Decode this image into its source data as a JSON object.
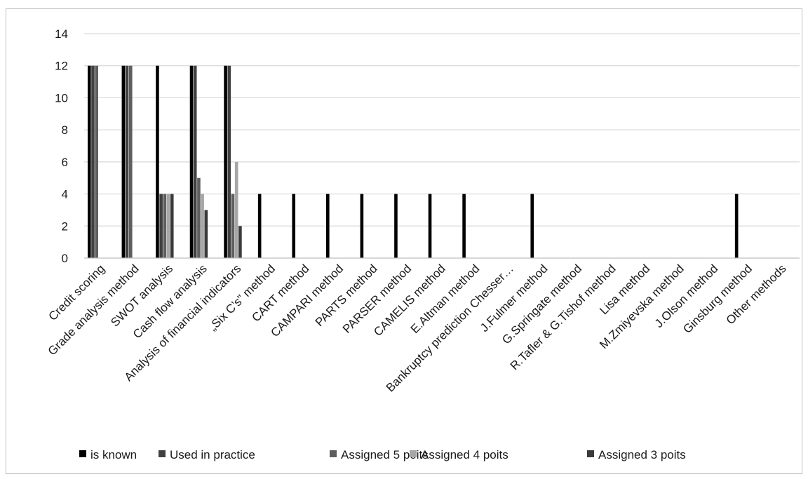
{
  "chart_data": {
    "type": "bar",
    "title": "",
    "xlabel": "",
    "ylabel": "",
    "ylim": [
      0,
      14
    ],
    "yticks": [
      0,
      2,
      4,
      6,
      8,
      10,
      12,
      14
    ],
    "grid": true,
    "legend_position": "bottom",
    "categories": [
      "Credit scoring",
      "Grade analysis method",
      "SWOT analysis",
      "Cash flow analysis",
      "Analysis of financial indicators",
      "„Six C’s” method",
      "CART method",
      "CAMPARI method",
      "PARTS method",
      "PARSER method",
      "CAMELIS method",
      "E.Altman method",
      "Bankruptcy prediction Chesser…",
      "J.Fulmer method",
      "G.Springate method",
      "R.Tafler & G.Tishof method",
      "Lisa method",
      "M.Zmiyevska method",
      "J.Olson method",
      "Ginsburg method",
      "Other methods"
    ],
    "series": [
      {
        "name": "is known",
        "color": "#000000",
        "values": [
          12,
          12,
          12,
          12,
          12,
          4,
          4,
          4,
          4,
          4,
          4,
          4,
          0,
          4,
          0,
          0,
          0,
          0,
          0,
          4,
          0
        ]
      },
      {
        "name": "Used in practice",
        "color": "#404040",
        "values": [
          12,
          12,
          4,
          12,
          12,
          0,
          0,
          0,
          0,
          0,
          0,
          0,
          0,
          0,
          0,
          0,
          0,
          0,
          0,
          0,
          0
        ]
      },
      {
        "name": "Assigned 5 poits",
        "color": "#5e5e5e",
        "values": [
          12,
          12,
          4,
          5,
          4,
          0,
          0,
          0,
          0,
          0,
          0,
          0,
          0,
          0,
          0,
          0,
          0,
          0,
          0,
          0,
          0
        ]
      },
      {
        "name": "Assigned 4 poits",
        "color": "#a6a6a6",
        "values": [
          0,
          0,
          4,
          4,
          6,
          0,
          0,
          0,
          0,
          0,
          0,
          0,
          0,
          0,
          0,
          0,
          0,
          0,
          0,
          0,
          0
        ]
      },
      {
        "name": "Assigned 3 poits",
        "color": "#3a3a3a",
        "values": [
          0,
          0,
          4,
          3,
          2,
          0,
          0,
          0,
          0,
          0,
          0,
          0,
          0,
          0,
          0,
          0,
          0,
          0,
          0,
          0,
          0
        ]
      }
    ]
  }
}
